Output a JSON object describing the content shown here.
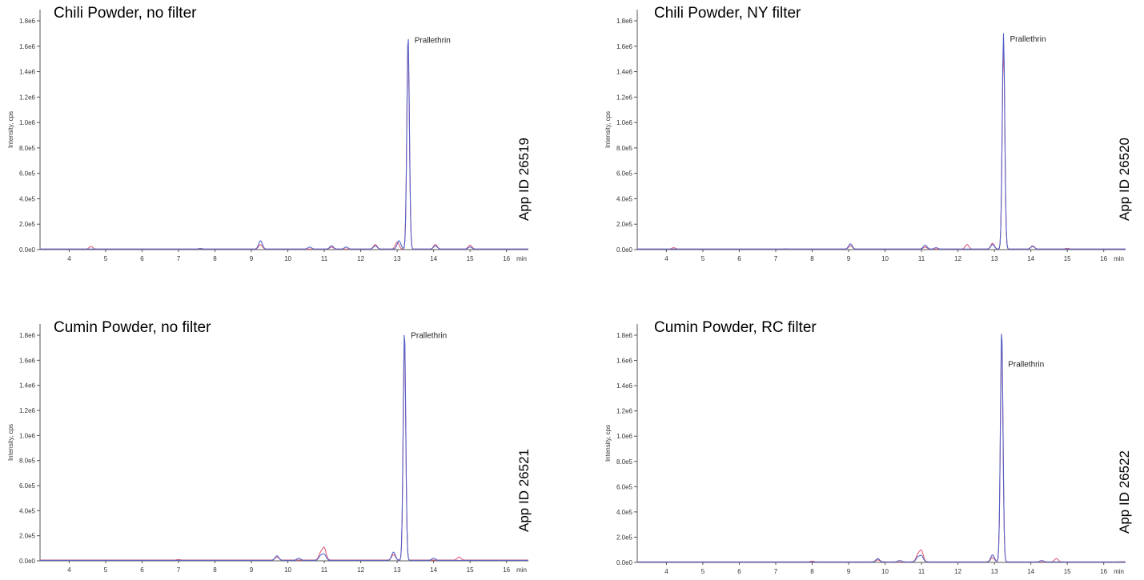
{
  "colors": {
    "trace_red": "#e0607a",
    "trace_blue": "#5563c8",
    "axis": "#555555",
    "text": "#000000"
  },
  "chart_data": [
    {
      "type": "line",
      "title": "Chili Powder, no filter",
      "ylabel": "Intensity, cps",
      "xunit": "min",
      "app_id": "App ID 26519",
      "peak_label": "Prallethrin",
      "xlim": [
        3.2,
        16.6
      ],
      "ylim": [
        0,
        1.8
      ],
      "y_ticks": [
        "0.0e0",
        "2.0e5",
        "4.0e5",
        "6.0e5",
        "8.0e5",
        "1.0e6",
        "1.2e6",
        "1.4e6",
        "1.6e6",
        "1.8e6"
      ],
      "x_ticks": [
        "4",
        "5",
        "6",
        "7",
        "8",
        "9",
        "10",
        "11",
        "12",
        "13",
        "14",
        "15",
        "16"
      ],
      "y_scale_note": "y values in millions of cps",
      "series": [
        {
          "x": [
            3.2,
            4.6,
            7.6,
            9.25,
            11.2,
            12.4,
            13.0,
            13.3,
            14.05,
            15.0,
            16.5
          ],
          "y": [
            0.004,
            0.025,
            0.01,
            0.04,
            0.02,
            0.04,
            0.06,
            1.6,
            0.04,
            0.035,
            0.005
          ]
        },
        {
          "x": [
            3.2,
            7.6,
            9.25,
            10.6,
            11.2,
            11.6,
            12.4,
            13.05,
            13.3,
            14.05,
            15.0,
            16.5
          ],
          "y": [
            0.004,
            0.008,
            0.07,
            0.02,
            0.03,
            0.02,
            0.03,
            0.07,
            1.69,
            0.03,
            0.02,
            0.004
          ]
        }
      ]
    },
    {
      "type": "line",
      "title": "Chili Powder, NY filter",
      "ylabel": "Intensity, cps",
      "xunit": "min",
      "app_id": "App ID 26520",
      "peak_label": "Prallethrin",
      "xlim": [
        3.2,
        16.6
      ],
      "ylim": [
        0,
        1.8
      ],
      "y_ticks": [
        "0.0e0",
        "2.0e5",
        "4.0e5",
        "6.0e5",
        "8.0e5",
        "1.0e6",
        "1.2e6",
        "1.4e6",
        "1.6e6",
        "1.8e6"
      ],
      "x_ticks": [
        "4",
        "5",
        "6",
        "7",
        "8",
        "9",
        "10",
        "11",
        "12",
        "13",
        "14",
        "15",
        "16"
      ],
      "y_scale_note": "y values in millions of cps",
      "series": [
        {
          "x": [
            3.2,
            4.2,
            9.05,
            11.1,
            12.25,
            12.95,
            13.25,
            14.05,
            15.0,
            16.5
          ],
          "y": [
            0.004,
            0.015,
            0.03,
            0.02,
            0.04,
            0.05,
            1.6,
            0.03,
            0.01,
            0.004
          ]
        },
        {
          "x": [
            3.2,
            7.3,
            9.05,
            11.1,
            11.4,
            12.95,
            13.25,
            14.05,
            16.5
          ],
          "y": [
            0.004,
            0.006,
            0.045,
            0.035,
            0.015,
            0.04,
            1.7,
            0.025,
            0.004
          ]
        }
      ]
    },
    {
      "type": "line",
      "title": "Cumin Powder, no filter",
      "ylabel": "Intensity, cps",
      "xunit": "min",
      "app_id": "App ID 26521",
      "peak_label": "Prallethrin",
      "xlim": [
        3.2,
        16.6
      ],
      "ylim": [
        0,
        1.8
      ],
      "y_ticks": [
        "0.0e0",
        "2.0e5",
        "4.0e5",
        "6.0e5",
        "8.0e5",
        "1.0e6",
        "1.2e6",
        "1.4e6",
        "1.6e6",
        "1.8e6"
      ],
      "x_ticks": [
        "4",
        "5",
        "6",
        "7",
        "8",
        "9",
        "10",
        "11",
        "12",
        "13",
        "14",
        "15",
        "16"
      ],
      "y_scale_note": "y values in millions of cps",
      "series": [
        {
          "x": [
            3.2,
            7.0,
            9.7,
            10.9,
            11.0,
            12.9,
            13.2,
            14.7,
            16.5
          ],
          "y": [
            0.006,
            0.01,
            0.03,
            0.06,
            0.1,
            0.05,
            1.76,
            0.03,
            0.006
          ]
        },
        {
          "x": [
            3.2,
            9.7,
            10.3,
            10.9,
            11.0,
            12.9,
            13.2,
            14.0,
            16.5
          ],
          "y": [
            0.004,
            0.04,
            0.02,
            0.04,
            0.05,
            0.07,
            1.84,
            0.02,
            0.004
          ]
        }
      ]
    },
    {
      "type": "line",
      "title": "Cumin Powder, RC filter",
      "ylabel": "Intensity, cps",
      "xunit": "min",
      "app_id": "App ID 26522",
      "peak_label": "Prallethrin",
      "xlim": [
        3.2,
        16.6
      ],
      "ylim": [
        0,
        1.8
      ],
      "y_ticks": [
        "0.0e0",
        "2.0e5",
        "4.0e5",
        "6.0e5",
        "8.0e5",
        "1.0e6",
        "1.2e6",
        "1.4e6",
        "1.6e6",
        "1.8e6"
      ],
      "x_ticks": [
        "4",
        "5",
        "6",
        "7",
        "8",
        "9",
        "10",
        "11",
        "12",
        "13",
        "14",
        "15",
        "16"
      ],
      "y_scale_note": "y values in millions of cps",
      "series": [
        {
          "x": [
            3.2,
            8.0,
            9.8,
            10.9,
            11.0,
            12.95,
            13.2,
            14.7,
            16.5
          ],
          "y": [
            0.004,
            0.01,
            0.02,
            0.06,
            0.09,
            0.04,
            1.76,
            0.03,
            0.006
          ]
        },
        {
          "x": [
            3.2,
            9.8,
            10.4,
            10.9,
            11.0,
            12.95,
            13.2,
            14.3,
            16.5
          ],
          "y": [
            0.004,
            0.03,
            0.015,
            0.04,
            0.05,
            0.06,
            1.85,
            0.015,
            0.004
          ]
        }
      ]
    }
  ]
}
